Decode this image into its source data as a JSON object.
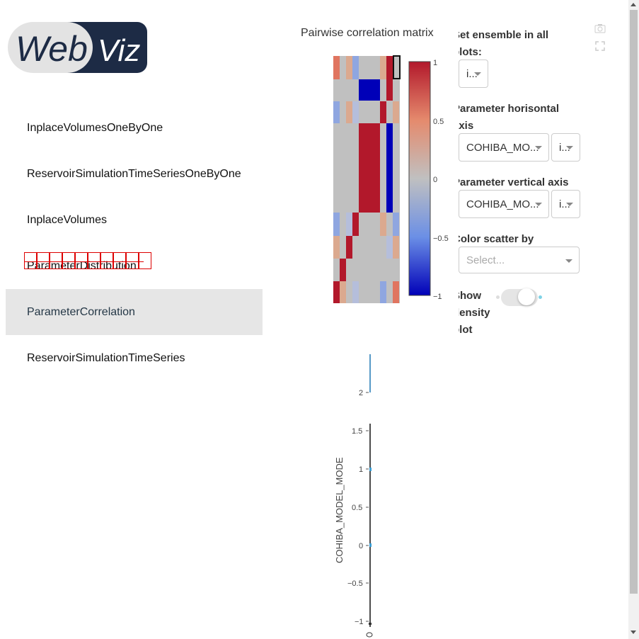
{
  "app": {
    "logo_text_1": "Web",
    "logo_text_2": "Viz"
  },
  "sidebar": {
    "items": [
      {
        "label": "InplaceVolumesOneByOne",
        "active": false
      },
      {
        "label": "ReservoirSimulationTimeSeriesOneByOne",
        "active": false
      },
      {
        "label": "InplaceVolumes",
        "active": false
      },
      {
        "label": "ParameterDistribution",
        "active": false
      },
      {
        "label": "ParameterCorrelation",
        "active": true
      },
      {
        "label": "ReservoirSimulationTimeSeries",
        "active": false
      }
    ]
  },
  "heatmap": {
    "title": "Pairwise correlation matrix",
    "colorbar_ticks": [
      "1",
      "0.5",
      "0",
      "−0.5",
      "−1"
    ],
    "colorscale": {
      "high": "#b2182b",
      "mid": "#c0c0c0",
      "low": "#0000b8"
    }
  },
  "scatter": {
    "ylabel": "COHIBA_MODEL_MODE",
    "top_tick": "2",
    "y_ticks": [
      "1.5",
      "1",
      "0.5",
      "0",
      "−0.5",
      "−1"
    ]
  },
  "controls": {
    "ensemble_label": "Set ensemble in all plots:",
    "ensemble_value": "i...",
    "horizontal_label": "Parameter horisontal axis",
    "horizontal_value": "COHIBA_MO...",
    "horizontal_ensemble": "i...",
    "vertical_label": "Parameter vertical axis",
    "vertical_value": "COHIBA_MO...",
    "vertical_ensemble": "i...",
    "color_label": "Color scatter by",
    "color_placeholder": "Select...",
    "density_label": "Show density plot",
    "accent": "#7fd3e6"
  }
}
